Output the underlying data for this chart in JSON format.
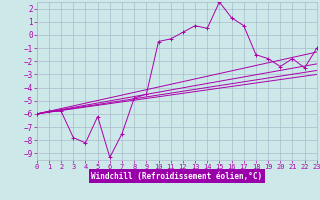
{
  "xlabel": "Windchill (Refroidissement éolien,°C)",
  "background_color": "#cde8e8",
  "grid_color": "#aabccc",
  "line_color": "#aa00aa",
  "xlabel_bg": "#9900aa",
  "xlim": [
    0,
    23
  ],
  "ylim": [
    -9.5,
    2.5
  ],
  "xticks": [
    0,
    1,
    2,
    3,
    4,
    5,
    6,
    7,
    8,
    9,
    10,
    11,
    12,
    13,
    14,
    15,
    16,
    17,
    18,
    19,
    20,
    21,
    22,
    23
  ],
  "yticks": [
    2,
    1,
    0,
    -1,
    -2,
    -3,
    -4,
    -5,
    -6,
    -7,
    -8,
    -9
  ],
  "series1_x": [
    0,
    1,
    2,
    3,
    4,
    5,
    6,
    7,
    8,
    9,
    10,
    11,
    12,
    13,
    14,
    15,
    16,
    17,
    18,
    19,
    20,
    21,
    22,
    23
  ],
  "series1_y": [
    -6.0,
    -5.8,
    -5.8,
    -7.8,
    -8.2,
    -6.2,
    -9.3,
    -7.5,
    -4.8,
    -4.5,
    -0.5,
    -0.3,
    0.2,
    0.7,
    0.5,
    2.5,
    1.3,
    0.7,
    -1.5,
    -1.8,
    -2.4,
    -1.8,
    -2.5,
    -1.0
  ],
  "line1_x": [
    0,
    23
  ],
  "line1_y": [
    -6.0,
    -1.3
  ],
  "line2_x": [
    0,
    23
  ],
  "line2_y": [
    -6.0,
    -2.2
  ],
  "line3_x": [
    0,
    23
  ],
  "line3_y": [
    -6.0,
    -2.7
  ],
  "line4_x": [
    0,
    23
  ],
  "line4_y": [
    -6.0,
    -3.0
  ]
}
